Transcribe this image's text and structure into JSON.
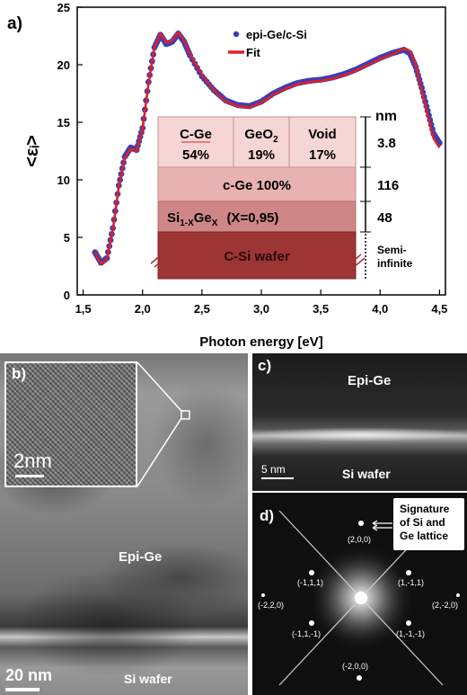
{
  "panel_a": {
    "label": "a)",
    "chart_data": {
      "type": "scatter",
      "xlabel": "Photon energy [eV]",
      "ylabel": "<εᵢ>",
      "xlim": [
        1.45,
        4.55
      ],
      "ylim": [
        0,
        25
      ],
      "xticks": [
        "1,5",
        "2,0",
        "2,5",
        "3,0",
        "3,5",
        "4,0",
        "4,5"
      ],
      "yticks": [
        "0",
        "5",
        "10",
        "15",
        "20",
        "25"
      ],
      "grid": false,
      "legend_position": "top-right",
      "series": [
        {
          "name": "epi-Ge/c-Si",
          "color": "#3a3fb8",
          "style": "markers",
          "x": [
            1.6,
            1.65,
            1.7,
            1.75,
            1.8,
            1.85,
            1.9,
            1.95,
            2.0,
            2.05,
            2.1,
            2.15,
            2.2,
            2.25,
            2.3,
            2.35,
            2.4,
            2.5,
            2.6,
            2.7,
            2.8,
            2.9,
            3.0,
            3.1,
            3.2,
            3.3,
            3.4,
            3.5,
            3.6,
            3.7,
            3.8,
            3.9,
            4.0,
            4.1,
            4.2,
            4.25,
            4.3,
            4.35,
            4.4,
            4.45,
            4.5
          ],
          "y": [
            3.7,
            2.8,
            3.2,
            5.8,
            9.5,
            12.0,
            12.8,
            12.6,
            14.5,
            18.5,
            21.5,
            22.6,
            21.8,
            22.0,
            22.7,
            22.0,
            20.8,
            19.0,
            17.8,
            16.9,
            16.5,
            16.4,
            16.8,
            17.5,
            18.0,
            18.4,
            18.6,
            18.7,
            18.9,
            19.2,
            19.6,
            20.1,
            20.6,
            21.0,
            21.3,
            21.0,
            19.8,
            18.0,
            16.0,
            14.0,
            13.2
          ]
        },
        {
          "name": "Fit",
          "color": "#e02020",
          "style": "line",
          "x": [
            1.6,
            1.65,
            1.7,
            1.75,
            1.8,
            1.85,
            1.9,
            1.95,
            2.0,
            2.05,
            2.1,
            2.15,
            2.2,
            2.25,
            2.3,
            2.35,
            2.4,
            2.5,
            2.6,
            2.7,
            2.8,
            2.9,
            3.0,
            3.1,
            3.2,
            3.3,
            3.4,
            3.5,
            3.6,
            3.7,
            3.8,
            3.9,
            4.0,
            4.1,
            4.2,
            4.25,
            4.3,
            4.35,
            4.4,
            4.45,
            4.5
          ],
          "y": [
            3.7,
            2.7,
            3.1,
            5.7,
            9.4,
            11.9,
            12.7,
            12.5,
            14.4,
            18.4,
            21.5,
            22.7,
            21.9,
            22.1,
            22.8,
            22.1,
            20.9,
            19.1,
            17.8,
            16.8,
            16.4,
            16.3,
            16.7,
            17.4,
            17.9,
            18.3,
            18.5,
            18.6,
            18.8,
            19.1,
            19.5,
            20.0,
            20.5,
            20.9,
            21.4,
            21.2,
            20.0,
            17.8,
            15.6,
            13.6,
            12.8
          ]
        }
      ]
    },
    "stack": {
      "unit": "nm",
      "row1": {
        "cells": [
          {
            "name": "C-Ge",
            "pct": "54%"
          },
          {
            "name": "GeO",
            "sub": "2",
            "pct": "19%"
          },
          {
            "name": "Void",
            "pct": "17%"
          }
        ],
        "thickness": "3.8"
      },
      "row2": {
        "label": "c-Ge 100%",
        "thickness": "116"
      },
      "row3": {
        "pre": "Si",
        "sub1": "1-X",
        "mid": "Ge",
        "sub2": "X",
        "post": "(X=0,95)",
        "thickness": "48"
      },
      "row4": {
        "label": "C-Si wafer",
        "thickness_line1": "Semi-",
        "thickness_line2": "infinite"
      }
    }
  },
  "panel_b": {
    "label": "b)",
    "inset_scale": "2nm",
    "main_scale": "20 nm",
    "layer_top": "Epi-Ge",
    "layer_bottom": "Si wafer"
  },
  "panel_c": {
    "label": "c)",
    "scale": "5  nm",
    "layer_top": "Epi-Ge",
    "layer_bottom": "Si wafer"
  },
  "panel_d": {
    "label": "d)",
    "note_line1": "Signature",
    "note_line2": "of Si and",
    "note_line3": "Ge lattice",
    "spots": [
      "(2,0,0)",
      "(-1,1,1)",
      "(1,-1,1)",
      "(-2,2,0)",
      "(2,-2,0)",
      "(-1,1,-1)",
      "(1,-1,-1)",
      "(-2,0,0)"
    ]
  }
}
